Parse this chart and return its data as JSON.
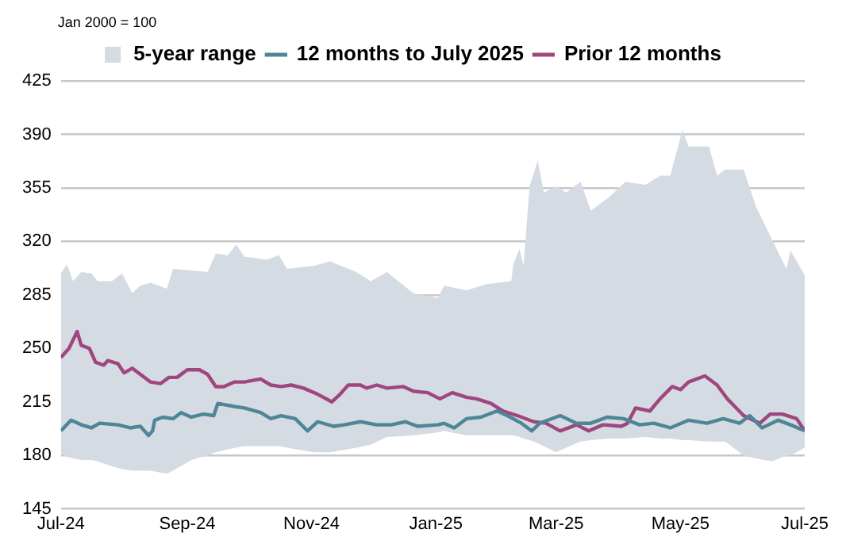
{
  "chart_data": {
    "type": "line",
    "annotations": [
      "Jan 2000 = 100"
    ],
    "xlim": [
      "2024-07-01",
      "2025-07-01"
    ],
    "xticks": [
      {
        "value": "2024-07-01",
        "label": "Jul-24"
      },
      {
        "value": "2024-09-01",
        "label": "Sep-24"
      },
      {
        "value": "2024-11-01",
        "label": "Nov-24"
      },
      {
        "value": "2025-01-01",
        "label": "Jan-25"
      },
      {
        "value": "2025-03-01",
        "label": "Mar-25"
      },
      {
        "value": "2025-05-01",
        "label": "May-25"
      },
      {
        "value": "2025-07-01",
        "label": "Jul-25"
      }
    ],
    "ylim": [
      145,
      425
    ],
    "yticks": [
      145,
      180,
      215,
      250,
      285,
      320,
      355,
      390,
      425
    ],
    "grid": "y",
    "legend": "top",
    "marker": "none",
    "line_style": "solid",
    "series": [
      {
        "name": "5-year range",
        "type": "area",
        "color": "#d5dbe3",
        "x": [
          "2024-07-01",
          "2024-07-04",
          "2024-07-07",
          "2024-07-11",
          "2024-07-16",
          "2024-07-19",
          "2024-07-26",
          "2024-07-31",
          "2024-08-05",
          "2024-08-09",
          "2024-08-14",
          "2024-08-22",
          "2024-08-25",
          "2024-09-03",
          "2024-09-11",
          "2024-09-15",
          "2024-09-21",
          "2024-09-25",
          "2024-09-29",
          "2024-10-10",
          "2024-10-16",
          "2024-10-20",
          "2024-11-02",
          "2024-11-10",
          "2024-11-23",
          "2024-11-30",
          "2024-12-08",
          "2024-12-21",
          "2025-01-02",
          "2025-01-05",
          "2025-01-16",
          "2025-01-26",
          "2025-02-07",
          "2025-02-08",
          "2025-02-11",
          "2025-02-13",
          "2025-02-16",
          "2025-02-20",
          "2025-02-23",
          "2025-03-01",
          "2025-03-06",
          "2025-03-13",
          "2025-03-18",
          "2025-03-27",
          "2025-04-04",
          "2025-04-14",
          "2025-04-21",
          "2025-04-26",
          "2025-05-02",
          "2025-05-05",
          "2025-05-15",
          "2025-05-19",
          "2025-05-23",
          "2025-06-01",
          "2025-06-07",
          "2025-06-15",
          "2025-06-22",
          "2025-06-24",
          "2025-07-01"
        ],
        "values": [
          null,
          null,
          null,
          null,
          null,
          null,
          null,
          null,
          null,
          null,
          null,
          null,
          null,
          null,
          null,
          null,
          null,
          null,
          null,
          null,
          null,
          null,
          null,
          null,
          null,
          null,
          null,
          null,
          null,
          null,
          null,
          null,
          null,
          null,
          null,
          null,
          null,
          null,
          null,
          null,
          null,
          null,
          null,
          null,
          null,
          null,
          null,
          null,
          null,
          null,
          null,
          null,
          null,
          null,
          null,
          null,
          null,
          null,
          null
        ],
        "upper": [
          299,
          305,
          294,
          300,
          299,
          294,
          294,
          299,
          286,
          291,
          293,
          289,
          302,
          301,
          300,
          312,
          311,
          318,
          310,
          308,
          311,
          302,
          304,
          307,
          300,
          294,
          300,
          286,
          283,
          291,
          288,
          292,
          294,
          305,
          315,
          304,
          356,
          373,
          352,
          356,
          352,
          359,
          340,
          349,
          359,
          357,
          363,
          363,
          393,
          382,
          382,
          363,
          367,
          367,
          343,
          321,
          302,
          314,
          298
        ],
        "lower": [
          181,
          179,
          178,
          177,
          177,
          176,
          173,
          171,
          170,
          170,
          170,
          168,
          170,
          177,
          180,
          182,
          184,
          185,
          186,
          186,
          186,
          185,
          182,
          182,
          185,
          187,
          192,
          193,
          195,
          196,
          193,
          193,
          193,
          193,
          192,
          191,
          190,
          188,
          186,
          182,
          185,
          189,
          190,
          191,
          191,
          192,
          191,
          191,
          190,
          190,
          189,
          189,
          189,
          180,
          178,
          176,
          180,
          180,
          185
        ]
      },
      {
        "name": "12 months to July 2025",
        "type": "line",
        "color": "#4e8597",
        "x": [
          "2024-07-01",
          "2024-07-06",
          "2024-07-11",
          "2024-07-16",
          "2024-07-20",
          "2024-07-29",
          "2024-08-04",
          "2024-08-09",
          "2024-08-13",
          "2024-08-15",
          "2024-08-16",
          "2024-08-20",
          "2024-08-25",
          "2024-08-29",
          "2024-09-03",
          "2024-09-09",
          "2024-09-14",
          "2024-09-16",
          "2024-09-24",
          "2024-09-29",
          "2024-10-07",
          "2024-10-12",
          "2024-10-17",
          "2024-10-24",
          "2024-10-30",
          "2024-11-04",
          "2024-11-12",
          "2024-11-17",
          "2024-11-25",
          "2024-12-03",
          "2024-12-10",
          "2024-12-17",
          "2024-12-23",
          "2025-01-02",
          "2025-01-05",
          "2025-01-10",
          "2025-01-16",
          "2025-01-23",
          "2025-01-31",
          "2025-02-05",
          "2025-02-12",
          "2025-02-17",
          "2025-02-21",
          "2025-03-03",
          "2025-03-11",
          "2025-03-18",
          "2025-03-26",
          "2025-04-03",
          "2025-04-11",
          "2025-04-18",
          "2025-04-26",
          "2025-05-05",
          "2025-05-14",
          "2025-05-22",
          "2025-05-30",
          "2025-06-04",
          "2025-06-10",
          "2025-06-18",
          "2025-06-24",
          "2025-07-01"
        ],
        "values": [
          196,
          203,
          200,
          198,
          201,
          200,
          198,
          199,
          193,
          196,
          203,
          205,
          204,
          208,
          205,
          207,
          206,
          214,
          212,
          211,
          208,
          204,
          206,
          204,
          196,
          202,
          199,
          200,
          202,
          200,
          200,
          202,
          199,
          200,
          201,
          198,
          204,
          205,
          209,
          206,
          201,
          196,
          201,
          206,
          201,
          201,
          205,
          204,
          200,
          201,
          198,
          203,
          201,
          204,
          201,
          206,
          198,
          203,
          200,
          196
        ]
      },
      {
        "name": "Prior 12 months",
        "type": "line",
        "color": "#a0467f",
        "x": [
          "2024-07-01",
          "2024-07-05",
          "2024-07-09",
          "2024-07-11",
          "2024-07-15",
          "2024-07-18",
          "2024-07-22",
          "2024-07-24",
          "2024-07-29",
          "2024-08-01",
          "2024-08-05",
          "2024-08-09",
          "2024-08-14",
          "2024-08-19",
          "2024-08-23",
          "2024-08-27",
          "2024-09-01",
          "2024-09-07",
          "2024-09-11",
          "2024-09-15",
          "2024-09-19",
          "2024-09-24",
          "2024-09-29",
          "2024-10-07",
          "2024-10-12",
          "2024-10-17",
          "2024-10-22",
          "2024-10-28",
          "2024-11-04",
          "2024-11-11",
          "2024-11-15",
          "2024-11-19",
          "2024-11-25",
          "2024-11-28",
          "2024-12-03",
          "2024-12-08",
          "2024-12-16",
          "2024-12-21",
          "2024-12-28",
          "2025-01-03",
          "2025-01-09",
          "2025-01-16",
          "2025-01-21",
          "2025-01-28",
          "2025-02-03",
          "2025-02-10",
          "2025-02-18",
          "2025-02-24",
          "2025-03-03",
          "2025-03-11",
          "2025-03-17",
          "2025-03-24",
          "2025-04-02",
          "2025-04-05",
          "2025-04-09",
          "2025-04-16",
          "2025-04-21",
          "2025-04-27",
          "2025-05-01",
          "2025-05-05",
          "2025-05-13",
          "2025-05-19",
          "2025-05-24",
          "2025-06-01",
          "2025-06-09",
          "2025-06-14",
          "2025-06-20",
          "2025-06-27",
          "2025-07-01"
        ],
        "values": [
          244,
          250,
          261,
          252,
          250,
          241,
          239,
          242,
          240,
          234,
          237,
          233,
          228,
          227,
          231,
          231,
          236,
          236,
          233,
          225,
          225,
          228,
          228,
          230,
          226,
          225,
          226,
          224,
          220,
          215,
          220,
          226,
          226,
          224,
          226,
          224,
          225,
          222,
          221,
          217,
          221,
          218,
          217,
          214,
          209,
          206,
          202,
          201,
          196,
          200,
          196,
          200,
          199,
          201,
          211,
          209,
          217,
          225,
          223,
          228,
          232,
          226,
          217,
          206,
          201,
          207,
          207,
          204,
          196
        ]
      }
    ]
  }
}
